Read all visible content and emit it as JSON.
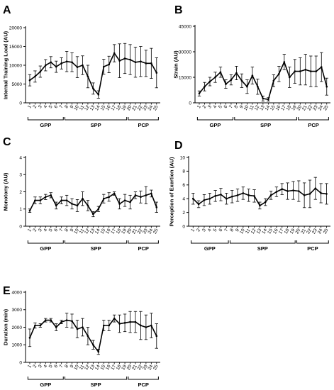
{
  "chart_data": [
    {
      "panel": "A",
      "type": "line",
      "ylabel": "Internal Training Load (AU)",
      "ylim": [
        0,
        20000
      ],
      "yticks": [
        "0",
        "5000",
        "10000",
        "15000",
        "20000"
      ],
      "x": [
        1,
        2,
        3,
        4,
        5,
        6,
        7,
        8,
        9,
        10,
        11,
        12,
        13,
        14,
        15,
        16,
        17,
        18,
        19,
        20,
        21,
        22,
        23,
        24,
        25
      ],
      "values": [
        6000,
        7000,
        8300,
        10000,
        10800,
        9600,
        10500,
        11000,
        10800,
        9500,
        10000,
        7000,
        3800,
        2200,
        9600,
        10200,
        13200,
        11200,
        11800,
        11500,
        10800,
        11000,
        10500,
        10500,
        8000
      ],
      "errors": [
        1500,
        1500,
        1500,
        1500,
        1500,
        1500,
        1500,
        2700,
        2500,
        2800,
        2500,
        3000,
        1500,
        1000,
        2000,
        2200,
        2300,
        4500,
        4000,
        4000,
        4000,
        4000,
        3500,
        4000,
        4000
      ],
      "phases": [
        "GPP",
        "SPP",
        "PCP"
      ]
    },
    {
      "panel": "B",
      "type": "line",
      "ylabel": "Strain (AU)",
      "ylim": [
        0,
        45000
      ],
      "yticks": [
        "0",
        "15000",
        "30000",
        "45000"
      ],
      "x": [
        1,
        2,
        3,
        4,
        5,
        6,
        7,
        8,
        9,
        10,
        11,
        12,
        13,
        14,
        15,
        16,
        17,
        18,
        19,
        20,
        21,
        22,
        23,
        24,
        25
      ],
      "values": [
        5500,
        9500,
        12500,
        15000,
        18000,
        11000,
        13500,
        17500,
        13000,
        9500,
        16000,
        9500,
        2500,
        2000,
        13000,
        17000,
        24000,
        15000,
        18500,
        18500,
        19500,
        18500,
        18500,
        21000,
        9500
      ],
      "errors": [
        1500,
        2500,
        2500,
        3000,
        3000,
        2500,
        3000,
        4000,
        4000,
        4000,
        5000,
        4500,
        1500,
        1000,
        3500,
        4500,
        4500,
        6000,
        7000,
        8000,
        9000,
        9000,
        9000,
        8500,
        5000
      ],
      "phases": [
        "GPP",
        "SPP",
        "PCP"
      ]
    },
    {
      "panel": "C",
      "type": "line",
      "ylabel": "Monotony (AU)",
      "ylim": [
        0,
        4
      ],
      "yticks": [
        "0",
        "1",
        "2",
        "3",
        "4"
      ],
      "x": [
        1,
        2,
        3,
        4,
        5,
        6,
        7,
        8,
        9,
        10,
        11,
        12,
        13,
        14,
        15,
        16,
        17,
        18,
        19,
        20,
        21,
        22,
        23,
        24,
        25
      ],
      "values": [
        0.9,
        1.5,
        1.5,
        1.7,
        1.8,
        1.2,
        1.5,
        1.5,
        1.3,
        1.2,
        1.6,
        1.2,
        0.7,
        1.0,
        1.6,
        1.7,
        1.9,
        1.3,
        1.5,
        1.4,
        1.8,
        1.7,
        1.8,
        1.9,
        1.1
      ],
      "errors": [
        0.1,
        0.2,
        0.2,
        0.15,
        0.15,
        0.2,
        0.2,
        0.3,
        0.3,
        0.35,
        0.4,
        0.3,
        0.15,
        0.15,
        0.25,
        0.25,
        0.1,
        0.3,
        0.35,
        0.4,
        0.2,
        0.35,
        0.5,
        0.2,
        0.3
      ],
      "phases": [
        "GPP",
        "SPP",
        "PCP"
      ]
    },
    {
      "panel": "D",
      "type": "line",
      "ylabel": "Perception of Exertion (AU)",
      "ylim": [
        0,
        10
      ],
      "yticks": [
        "0",
        "2",
        "4",
        "6",
        "8",
        "10"
      ],
      "x": [
        1,
        2,
        3,
        4,
        5,
        6,
        7,
        8,
        9,
        10,
        11,
        12,
        13,
        14,
        15,
        16,
        17,
        18,
        19,
        20,
        21,
        22,
        23,
        24,
        25
      ],
      "values": [
        4.0,
        3.2,
        3.8,
        4.0,
        4.4,
        4.6,
        4.0,
        4.3,
        4.5,
        4.8,
        4.5,
        4.4,
        3.0,
        3.5,
        4.5,
        5.0,
        5.4,
        5.1,
        5.2,
        5.1,
        4.5,
        4.7,
        5.5,
        4.8,
        4.7
      ],
      "errors": [
        0.8,
        0.5,
        0.8,
        0.8,
        0.8,
        0.9,
        0.8,
        0.9,
        0.9,
        0.9,
        0.9,
        0.9,
        0.5,
        0.5,
        0.6,
        0.7,
        0.8,
        1.2,
        1.3,
        1.5,
        1.8,
        2.0,
        1.6,
        1.4,
        1.5
      ],
      "phases": [
        "GPP",
        "SPP",
        "PCP"
      ]
    },
    {
      "panel": "E",
      "type": "line",
      "ylabel": "Duration (min)",
      "ylim": [
        0,
        4000
      ],
      "yticks": [
        "0",
        "1000",
        "2000",
        "3000",
        "4000"
      ],
      "x": [
        1,
        2,
        3,
        4,
        5,
        6,
        7,
        8,
        9,
        10,
        11,
        12,
        13,
        14,
        15,
        16,
        17,
        18,
        19,
        20,
        21,
        22,
        23,
        24,
        25
      ],
      "values": [
        1400,
        2100,
        2100,
        2400,
        2400,
        2000,
        2300,
        2400,
        2350,
        1900,
        2000,
        1500,
        1000,
        600,
        2100,
        2100,
        2500,
        2200,
        2250,
        2300,
        2300,
        2100,
        2000,
        2100,
        1500
      ],
      "errors": [
        500,
        150,
        100,
        100,
        100,
        200,
        100,
        400,
        400,
        500,
        500,
        500,
        250,
        150,
        300,
        300,
        200,
        500,
        500,
        600,
        600,
        800,
        700,
        700,
        700
      ],
      "phases": [
        "GPP",
        "SPP",
        "PCP"
      ]
    }
  ]
}
